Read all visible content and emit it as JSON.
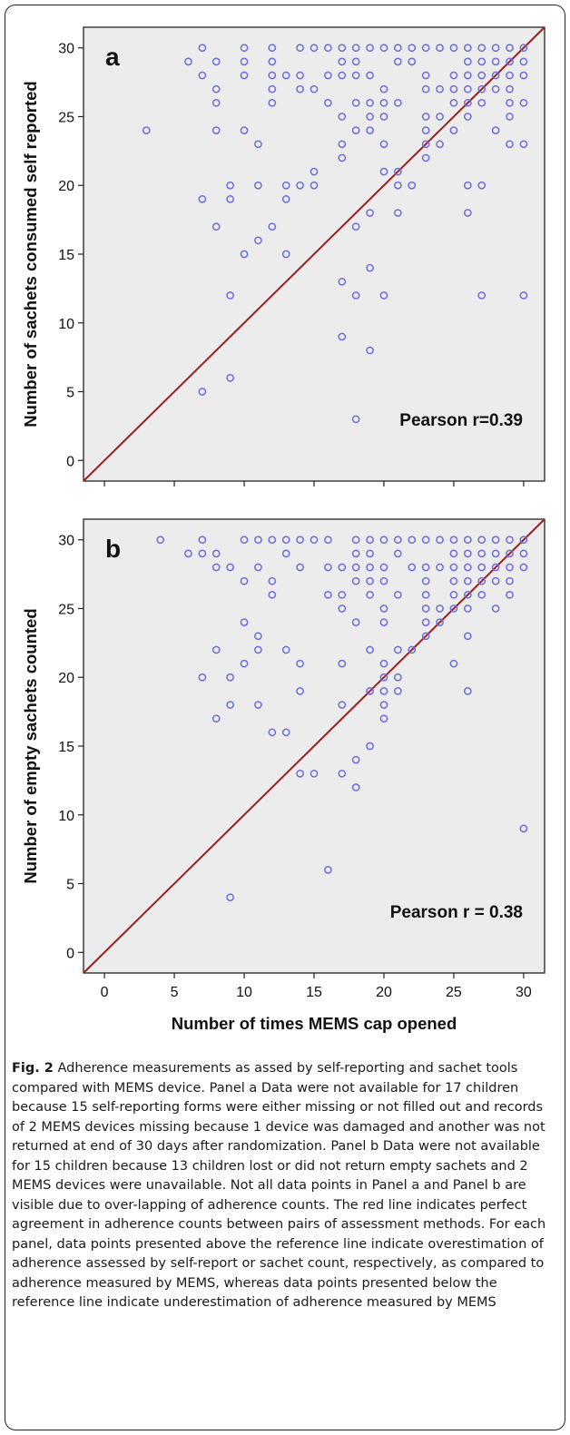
{
  "figure": {
    "caption_label": "Fig. 2",
    "caption_text": "Adherence measurements as assed by self-reporting and sachet tools compared with MEMS device. Panel a Data were not available for 17 children because 15 self-reporting forms were either missing or not filled out and records of 2 MEMS devices missing because 1 device was damaged and another was not returned at end of 30 days after randomization. Panel b Data were not available for 15 children because 13 children lost or did not return empty sachets and 2 MEMS devices were unavailable. Not all data points in Panel a and Panel b are visible due to over-lapping of adherence counts. The red line indicates perfect agreement in adherence counts between pairs of assessment methods. For each panel, data points presented above the reference line indicate overestimation of adherence assessed by self-report or sachet count, respectively, as compared to adherence measured by MEMS, whereas data points presented below the reference line indicate underestimation of adherence measured by MEMS"
  },
  "colors": {
    "plot_bg": "#ececec",
    "marker": "#6b6bdf",
    "ref_line": "#9b2020",
    "axis": "#222222"
  },
  "chart_data": [
    {
      "type": "scatter",
      "panel_label": "a",
      "title": "",
      "xlabel": "Number of times MEMS cap opened",
      "ylabel": "Number of sachets consumed self reported",
      "xlim": [
        -1.5,
        31.5
      ],
      "ylim": [
        -1.5,
        31.5
      ],
      "xticks": [
        0,
        5,
        10,
        15,
        20,
        25,
        30
      ],
      "yticks": [
        0,
        5,
        10,
        15,
        20,
        25,
        30
      ],
      "annotation": "Pearson r=0.39",
      "reference_line": "y = x",
      "grid": false,
      "points": [
        [
          3,
          24
        ],
        [
          6,
          29
        ],
        [
          7,
          30
        ],
        [
          7,
          28
        ],
        [
          7,
          19
        ],
        [
          7,
          5
        ],
        [
          8,
          29
        ],
        [
          8,
          27
        ],
        [
          8,
          26
        ],
        [
          8,
          24
        ],
        [
          8,
          17
        ],
        [
          9,
          20
        ],
        [
          9,
          19
        ],
        [
          9,
          12
        ],
        [
          9,
          6
        ],
        [
          10,
          30
        ],
        [
          10,
          29
        ],
        [
          10,
          28
        ],
        [
          10,
          24
        ],
        [
          10,
          15
        ],
        [
          11,
          23
        ],
        [
          11,
          20
        ],
        [
          11,
          16
        ],
        [
          12,
          30
        ],
        [
          12,
          29
        ],
        [
          12,
          28
        ],
        [
          12,
          27
        ],
        [
          12,
          26
        ],
        [
          12,
          17
        ],
        [
          13,
          28
        ],
        [
          13,
          20
        ],
        [
          13,
          19
        ],
        [
          13,
          15
        ],
        [
          14,
          30
        ],
        [
          14,
          28
        ],
        [
          14,
          27
        ],
        [
          14,
          20
        ],
        [
          15,
          30
        ],
        [
          15,
          27
        ],
        [
          15,
          21
        ],
        [
          15,
          20
        ],
        [
          16,
          30
        ],
        [
          16,
          28
        ],
        [
          16,
          26
        ],
        [
          17,
          30
        ],
        [
          17,
          29
        ],
        [
          17,
          28
        ],
        [
          17,
          25
        ],
        [
          17,
          23
        ],
        [
          17,
          22
        ],
        [
          17,
          13
        ],
        [
          17,
          9
        ],
        [
          18,
          30
        ],
        [
          18,
          29
        ],
        [
          18,
          28
        ],
        [
          18,
          26
        ],
        [
          18,
          24
        ],
        [
          18,
          17
        ],
        [
          18,
          12
        ],
        [
          18,
          3
        ],
        [
          19,
          30
        ],
        [
          19,
          28
        ],
        [
          19,
          26
        ],
        [
          19,
          25
        ],
        [
          19,
          24
        ],
        [
          19,
          18
        ],
        [
          19,
          14
        ],
        [
          19,
          8
        ],
        [
          20,
          30
        ],
        [
          20,
          27
        ],
        [
          20,
          26
        ],
        [
          20,
          25
        ],
        [
          20,
          23
        ],
        [
          20,
          21
        ],
        [
          20,
          12
        ],
        [
          21,
          30
        ],
        [
          21,
          29
        ],
        [
          21,
          26
        ],
        [
          21,
          21
        ],
        [
          21,
          20
        ],
        [
          21,
          18
        ],
        [
          22,
          30
        ],
        [
          22,
          29
        ],
        [
          22,
          20
        ],
        [
          23,
          30
        ],
        [
          23,
          28
        ],
        [
          23,
          27
        ],
        [
          23,
          25
        ],
        [
          23,
          24
        ],
        [
          23,
          23
        ],
        [
          23,
          22
        ],
        [
          24,
          30
        ],
        [
          24,
          27
        ],
        [
          24,
          25
        ],
        [
          24,
          23
        ],
        [
          25,
          30
        ],
        [
          25,
          28
        ],
        [
          25,
          27
        ],
        [
          25,
          26
        ],
        [
          25,
          24
        ],
        [
          26,
          30
        ],
        [
          26,
          29
        ],
        [
          26,
          28
        ],
        [
          26,
          27
        ],
        [
          26,
          26
        ],
        [
          26,
          25
        ],
        [
          26,
          20
        ],
        [
          26,
          18
        ],
        [
          27,
          30
        ],
        [
          27,
          29
        ],
        [
          27,
          28
        ],
        [
          27,
          27
        ],
        [
          27,
          26
        ],
        [
          27,
          20
        ],
        [
          27,
          12
        ],
        [
          28,
          30
        ],
        [
          28,
          29
        ],
        [
          28,
          28
        ],
        [
          28,
          27
        ],
        [
          28,
          24
        ],
        [
          29,
          30
        ],
        [
          29,
          29
        ],
        [
          29,
          28
        ],
        [
          29,
          27
        ],
        [
          29,
          26
        ],
        [
          29,
          25
        ],
        [
          29,
          23
        ],
        [
          30,
          30
        ],
        [
          30,
          29
        ],
        [
          30,
          28
        ],
        [
          30,
          26
        ],
        [
          30,
          23
        ],
        [
          30,
          12
        ]
      ]
    },
    {
      "type": "scatter",
      "panel_label": "b",
      "title": "",
      "xlabel": "Number of times MEMS cap opened",
      "ylabel": "Number of empty sachets counted",
      "xlim": [
        -1.5,
        31.5
      ],
      "ylim": [
        -1.5,
        31.5
      ],
      "xticks": [
        0,
        5,
        10,
        15,
        20,
        25,
        30
      ],
      "yticks": [
        0,
        5,
        10,
        15,
        20,
        25,
        30
      ],
      "annotation": "Pearson r = 0.38",
      "reference_line": "y = x",
      "grid": false,
      "points": [
        [
          4,
          30
        ],
        [
          6,
          29
        ],
        [
          7,
          30
        ],
        [
          7,
          29
        ],
        [
          7,
          20
        ],
        [
          8,
          29
        ],
        [
          8,
          28
        ],
        [
          8,
          22
        ],
        [
          8,
          17
        ],
        [
          9,
          28
        ],
        [
          9,
          20
        ],
        [
          9,
          18
        ],
        [
          9,
          4
        ],
        [
          10,
          30
        ],
        [
          10,
          27
        ],
        [
          10,
          24
        ],
        [
          10,
          21
        ],
        [
          11,
          30
        ],
        [
          11,
          28
        ],
        [
          11,
          23
        ],
        [
          11,
          22
        ],
        [
          11,
          18
        ],
        [
          12,
          30
        ],
        [
          12,
          27
        ],
        [
          12,
          26
        ],
        [
          12,
          16
        ],
        [
          13,
          30
        ],
        [
          13,
          29
        ],
        [
          13,
          22
        ],
        [
          13,
          16
        ],
        [
          14,
          30
        ],
        [
          14,
          28
        ],
        [
          14,
          21
        ],
        [
          14,
          19
        ],
        [
          14,
          13
        ],
        [
          15,
          30
        ],
        [
          15,
          13
        ],
        [
          16,
          30
        ],
        [
          16,
          28
        ],
        [
          16,
          26
        ],
        [
          16,
          6
        ],
        [
          17,
          28
        ],
        [
          17,
          26
        ],
        [
          17,
          25
        ],
        [
          17,
          21
        ],
        [
          17,
          18
        ],
        [
          17,
          13
        ],
        [
          18,
          30
        ],
        [
          18,
          29
        ],
        [
          18,
          28
        ],
        [
          18,
          27
        ],
        [
          18,
          24
        ],
        [
          18,
          14
        ],
        [
          18,
          12
        ],
        [
          19,
          30
        ],
        [
          19,
          29
        ],
        [
          19,
          28
        ],
        [
          19,
          27
        ],
        [
          19,
          26
        ],
        [
          19,
          22
        ],
        [
          19,
          19
        ],
        [
          19,
          15
        ],
        [
          20,
          30
        ],
        [
          20,
          28
        ],
        [
          20,
          27
        ],
        [
          20,
          25
        ],
        [
          20,
          24
        ],
        [
          20,
          21
        ],
        [
          20,
          20
        ],
        [
          20,
          19
        ],
        [
          20,
          18
        ],
        [
          20,
          17
        ],
        [
          21,
          30
        ],
        [
          21,
          29
        ],
        [
          21,
          26
        ],
        [
          21,
          22
        ],
        [
          21,
          20
        ],
        [
          21,
          19
        ],
        [
          22,
          30
        ],
        [
          22,
          28
        ],
        [
          22,
          22
        ],
        [
          23,
          30
        ],
        [
          23,
          28
        ],
        [
          23,
          27
        ],
        [
          23,
          26
        ],
        [
          23,
          25
        ],
        [
          23,
          24
        ],
        [
          23,
          23
        ],
        [
          24,
          30
        ],
        [
          24,
          28
        ],
        [
          24,
          25
        ],
        [
          24,
          24
        ],
        [
          25,
          30
        ],
        [
          25,
          29
        ],
        [
          25,
          28
        ],
        [
          25,
          27
        ],
        [
          25,
          26
        ],
        [
          25,
          25
        ],
        [
          25,
          21
        ],
        [
          26,
          30
        ],
        [
          26,
          29
        ],
        [
          26,
          28
        ],
        [
          26,
          27
        ],
        [
          26,
          26
        ],
        [
          26,
          25
        ],
        [
          26,
          23
        ],
        [
          26,
          19
        ],
        [
          27,
          30
        ],
        [
          27,
          29
        ],
        [
          27,
          28
        ],
        [
          27,
          27
        ],
        [
          27,
          26
        ],
        [
          28,
          30
        ],
        [
          28,
          29
        ],
        [
          28,
          28
        ],
        [
          28,
          27
        ],
        [
          28,
          25
        ],
        [
          29,
          30
        ],
        [
          29,
          29
        ],
        [
          29,
          28
        ],
        [
          29,
          27
        ],
        [
          29,
          26
        ],
        [
          30,
          30
        ],
        [
          30,
          29
        ],
        [
          30,
          28
        ],
        [
          30,
          9
        ]
      ]
    }
  ]
}
